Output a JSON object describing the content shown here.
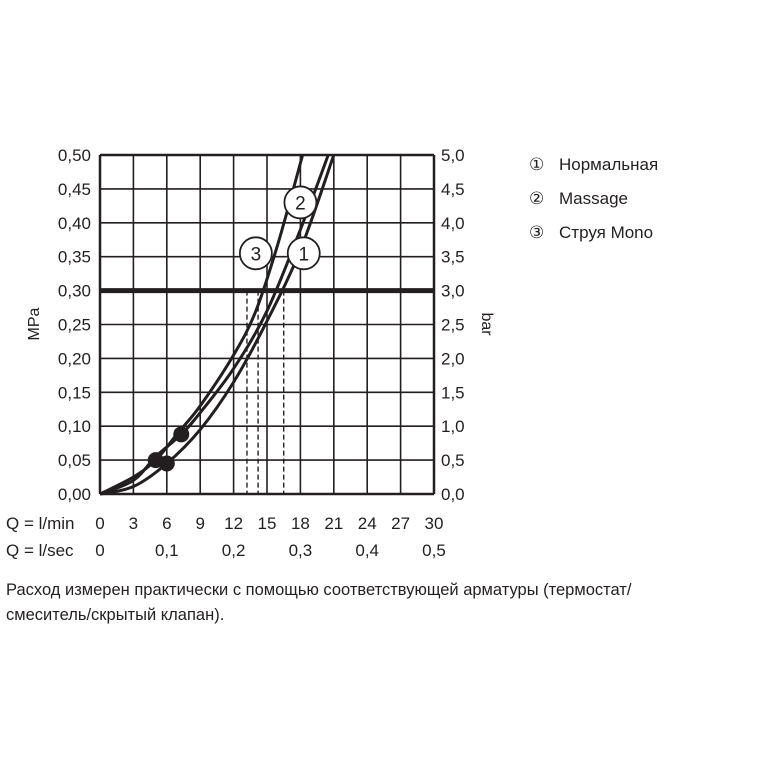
{
  "chart_data": {
    "type": "line",
    "y_left_label": "MPa",
    "y_right_label": "bar",
    "y_left_ticks": [
      "0,00",
      "0,05",
      "0,10",
      "0,15",
      "0,20",
      "0,25",
      "0,30",
      "0,35",
      "0,40",
      "0,45",
      "0,50"
    ],
    "y_right_ticks": [
      "0,0",
      "0,5",
      "1,0",
      "1,5",
      "2,0",
      "2,5",
      "3,0",
      "3,5",
      "4,0",
      "4,5",
      "5,0"
    ],
    "ylim_mpa": [
      0,
      0.5
    ],
    "ylim_bar": [
      0,
      5
    ],
    "x_lmin_label": "Q = l/min",
    "x_lmin_ticks": [
      "0",
      "3",
      "6",
      "9",
      "12",
      "15",
      "18",
      "21",
      "24",
      "27",
      "30"
    ],
    "x_lsec_label": "Q = l/sec",
    "x_lsec_ticks": [
      "0",
      "0,1",
      "0,2",
      "0,3",
      "0,4",
      "0,5"
    ],
    "xlim_lmin": [
      0,
      30
    ],
    "grid": true,
    "reference_line": {
      "y_mpa": 0.3
    },
    "series": [
      {
        "id": "1",
        "name": "Нормальная",
        "x": [
          0,
          3,
          6,
          9,
          12,
          15,
          18,
          21
        ],
        "y": [
          0,
          0.011,
          0.045,
          0.095,
          0.165,
          0.255,
          0.36,
          0.5
        ],
        "dot": [
          6,
          0.045
        ],
        "marker_at_0_3": 16.5,
        "label_pos": [
          18.3,
          0.355
        ]
      },
      {
        "id": "2",
        "name": "Massage",
        "x": [
          0,
          3,
          5,
          7.3,
          9,
          12,
          15,
          18,
          20.5
        ],
        "y": [
          0,
          0.02,
          0.055,
          0.088,
          0.12,
          0.185,
          0.27,
          0.39,
          0.5
        ],
        "dot": [
          7.3,
          0.088
        ],
        "marker_at_0_3": 14.2,
        "label_pos": [
          18,
          0.43
        ]
      },
      {
        "id": "3",
        "name": "Струя Mono",
        "x": [
          0,
          3,
          5,
          7,
          9,
          12,
          14,
          16,
          18.2
        ],
        "y": [
          0,
          0.025,
          0.05,
          0.09,
          0.13,
          0.205,
          0.27,
          0.37,
          0.5
        ],
        "dot": [
          5,
          0.05
        ],
        "marker_at_0_3": 13.2,
        "label_pos": [
          14,
          0.355
        ]
      }
    ]
  },
  "legend": [
    {
      "mark": "①",
      "name": "Нормальная"
    },
    {
      "mark": "②",
      "name": "Massage"
    },
    {
      "mark": "③",
      "name": "Струя Mono"
    }
  ],
  "note_lines": [
    "Расход измерен практически с помощью соответствующей арматуры (термостат/",
    "смеситель/скрытый клапан)."
  ]
}
